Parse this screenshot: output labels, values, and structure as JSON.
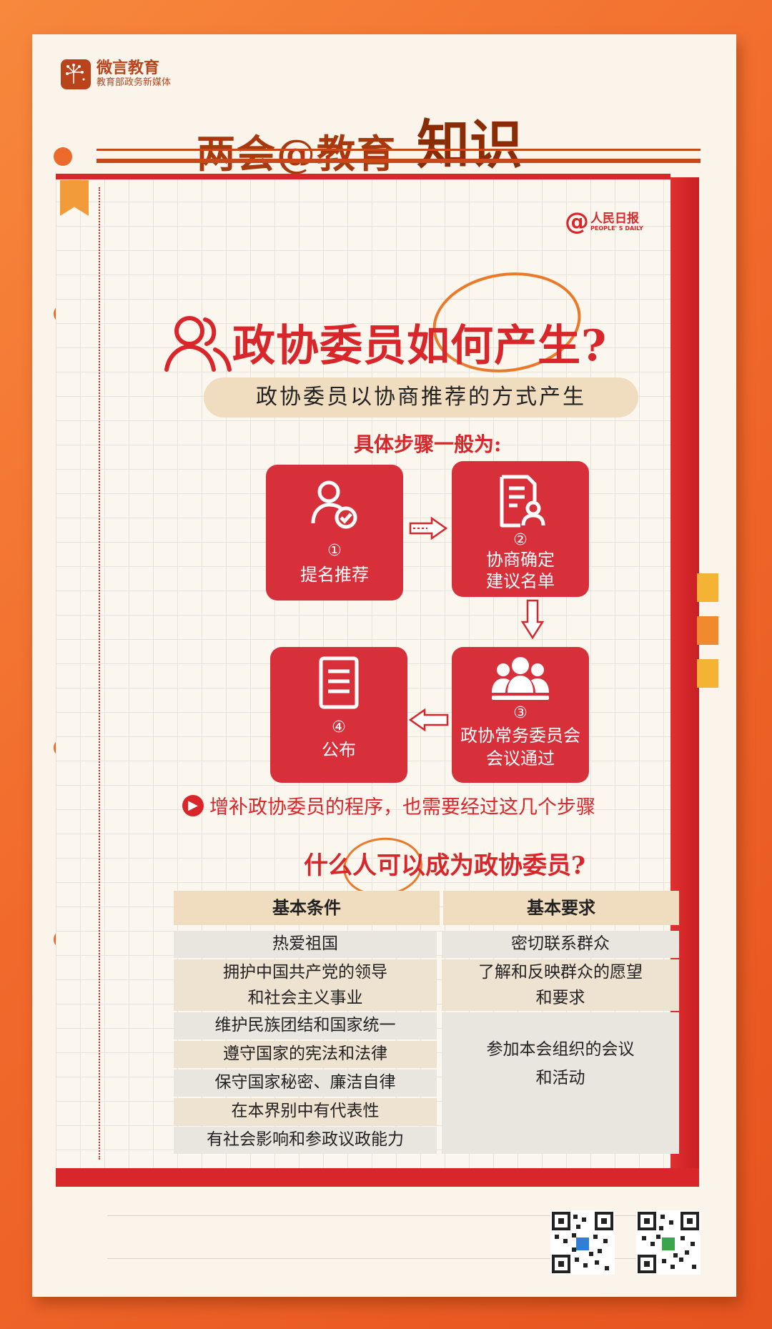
{
  "brand": {
    "name": "微言教育",
    "sub": "教育部政务新媒体"
  },
  "header": {
    "title_main": "两会@教育",
    "title_accent": "知识"
  },
  "source": {
    "name_cn": "人民日报",
    "name_en": "PEOPLE' S DAILY"
  },
  "section1": {
    "question": "政协委员如何产生?",
    "subtitle": "政协委员以协商推荐的方式产生",
    "steps_heading": "具体步骤一般为:",
    "steps": [
      {
        "num": "①",
        "line1": "提名推荐",
        "line2": "",
        "icon": "user-check-icon"
      },
      {
        "num": "②",
        "line1": "协商确定",
        "line2": "建议名单",
        "icon": "document-person-icon"
      },
      {
        "num": "③",
        "line1": "政协常务委员会",
        "line2": "会议通过",
        "icon": "group-icon"
      },
      {
        "num": "④",
        "line1": "公布",
        "line2": "",
        "icon": "document-list-icon"
      }
    ],
    "note": "增补政协委员的程序，也需要经过这几个步骤"
  },
  "section2": {
    "question": "什么人可以成为政协委员?",
    "headers": [
      "基本条件",
      "基本要求"
    ],
    "left_items": [
      "热爱祖国",
      "拥护中国共产党的领导",
      "和社会主义事业",
      "维护民族团结和国家统一",
      "遵守国家的宪法和法律",
      "保守国家秘密、廉洁自律",
      "在本界别中有代表性",
      "有社会影响和参政议政能力"
    ],
    "right_items": [
      "密切联系群众",
      "了解和反映群众的愿望",
      "和要求",
      "参加本会组织的会议",
      "和活动"
    ]
  },
  "colors": {
    "primary_red": "#d8262a",
    "orange": "#f16a2c",
    "cream": "#fbf4ea"
  }
}
